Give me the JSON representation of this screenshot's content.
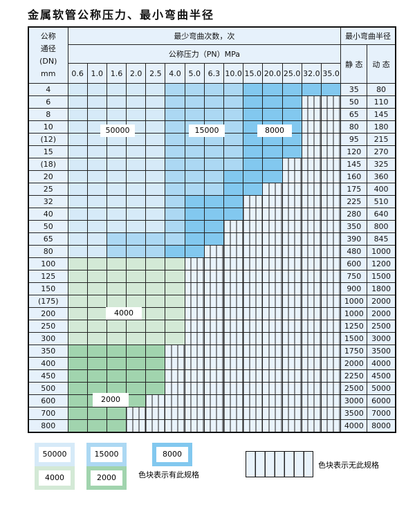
{
  "title": "金属软管公称压力、最小弯曲半径",
  "header": {
    "dn": [
      "公称",
      "通径",
      "(DN)",
      "mm"
    ],
    "cycles": "最少弯曲次数，次",
    "pressure": "公称压力（PN）MPa",
    "radius": "最小弯曲半径",
    "static": "静 态",
    "dynamic": "动 态",
    "pressures": [
      "0.6",
      "1.0",
      "1.6",
      "2.0",
      "2.5",
      "4.0",
      "5.0",
      "6.3",
      "10.0",
      "15.0",
      "20.0",
      "25.0",
      "32.0",
      "35.0"
    ]
  },
  "colors": {
    "a": "#d6eaf8",
    "b": "#acd8f3",
    "c": "#82c8ef",
    "d": "#d3e9d6",
    "e": "#a1d4ae",
    "x": "#e9f3fb"
  },
  "cell_legend": {
    "a": "50000",
    "b": "15000",
    "c": "8000",
    "d": "4000",
    "e": "2000",
    "x": "no spec"
  },
  "rows": [
    {
      "dn": "4",
      "static": "35",
      "dynamic": "80",
      "cells": "aaaaabbbbccccc"
    },
    {
      "dn": "6",
      "static": "50",
      "dynamic": "110",
      "cells": "aaaaabbbbcccxx"
    },
    {
      "dn": "8",
      "static": "65",
      "dynamic": "145",
      "cells": "aaaaabbbbcccxx"
    },
    {
      "dn": "10",
      "static": "80",
      "dynamic": "180",
      "cells": "aaaaabbbbcccxx"
    },
    {
      "dn": "(12)",
      "static": "95",
      "dynamic": "215",
      "cells": "aaaaabbbbcccxx"
    },
    {
      "dn": "15",
      "static": "120",
      "dynamic": "270",
      "cells": "aaaaabbbbcccxx"
    },
    {
      "dn": "(18)",
      "static": "145",
      "dynamic": "325",
      "cells": "aaaaabbbbccxxx"
    },
    {
      "dn": "20",
      "static": "160",
      "dynamic": "360",
      "cells": "aaaaabbbcccxxx"
    },
    {
      "dn": "25",
      "static": "175",
      "dynamic": "400",
      "cells": "aaaaabbbccxxxx"
    },
    {
      "dn": "32",
      "static": "225",
      "dynamic": "510",
      "cells": "aaaaabcccxxxxx"
    },
    {
      "dn": "40",
      "static": "280",
      "dynamic": "640",
      "cells": "aaaaabcccxxxxx"
    },
    {
      "dn": "50",
      "static": "350",
      "dynamic": "800",
      "cells": "aaaaabccxxxxxx"
    },
    {
      "dn": "65",
      "static": "390",
      "dynamic": "845",
      "cells": "aabbbbccxxxxxx"
    },
    {
      "dn": "80",
      "static": "480",
      "dynamic": "1000",
      "cells": "aabbbccxxxxxxx"
    },
    {
      "dn": "100",
      "static": "600",
      "dynamic": "1200",
      "cells": "ddddddxxxxxxxx"
    },
    {
      "dn": "125",
      "static": "750",
      "dynamic": "1500",
      "cells": "ddddddxxxxxxxx"
    },
    {
      "dn": "150",
      "static": "900",
      "dynamic": "1800",
      "cells": "ddddddxxxxxxxx"
    },
    {
      "dn": "(175)",
      "static": "1000",
      "dynamic": "2000",
      "cells": "ddddddxxxxxxxx"
    },
    {
      "dn": "200",
      "static": "1000",
      "dynamic": "2000",
      "cells": "ddddddxxxxxxxx"
    },
    {
      "dn": "250",
      "static": "1250",
      "dynamic": "2500",
      "cells": "ddddddxxxxxxxx"
    },
    {
      "dn": "300",
      "static": "1500",
      "dynamic": "3000",
      "cells": "ddddddxxxxxxxx"
    },
    {
      "dn": "350",
      "static": "1750",
      "dynamic": "3500",
      "cells": "eeeeexxxxxxxxx"
    },
    {
      "dn": "400",
      "static": "2000",
      "dynamic": "4000",
      "cells": "eeeeexxxxxxxxx"
    },
    {
      "dn": "450",
      "static": "2250",
      "dynamic": "4500",
      "cells": "eeeeexxxxxxxxx"
    },
    {
      "dn": "500",
      "static": "2500",
      "dynamic": "5000",
      "cells": "eeeeexxxxxxxxx"
    },
    {
      "dn": "600",
      "static": "3000",
      "dynamic": "6000",
      "cells": "eeeexxxxxxxxxx"
    },
    {
      "dn": "700",
      "static": "3500",
      "dynamic": "7000",
      "cells": "eeexxxxxxxxxxx"
    },
    {
      "dn": "800",
      "static": "4000",
      "dynamic": "8000",
      "cells": "eeexxxxxxxxxxx"
    }
  ],
  "region_labels": {
    "a": "50000",
    "b": "15000",
    "c": "8000",
    "d": "4000",
    "e": "2000"
  },
  "legend": {
    "items": [
      "50000",
      "15000",
      "8000",
      "4000",
      "2000"
    ],
    "has_spec": "色块表示有此规格",
    "no_spec": "色块表示无此规格"
  }
}
